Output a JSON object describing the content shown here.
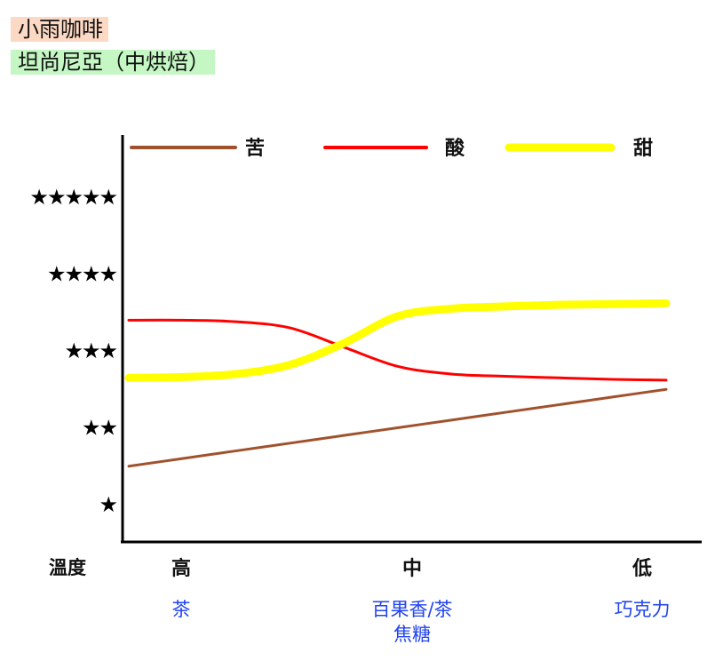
{
  "header": {
    "brand": "小雨咖啡",
    "brand_bg": "#fcd9c4",
    "origin": "坦尚尼亞（中烘焙）",
    "origin_bg": "#c4f7c4"
  },
  "chart_data": {
    "type": "line",
    "title": "",
    "ylabel": "",
    "xlabel": "溫度",
    "y_tick_labels": [
      "★",
      "★★",
      "★★★",
      "★★★★",
      "★★★★★"
    ],
    "ylim": [
      0.5,
      5.5
    ],
    "x_categories": [
      "高",
      "中",
      "低"
    ],
    "x_flavor_notes": [
      "茶",
      "百果香/茶\n焦糖",
      "巧克力"
    ],
    "x": [
      0,
      0.1,
      0.2,
      0.3,
      0.4,
      0.5,
      0.6,
      0.7,
      0.8,
      0.9,
      1.0
    ],
    "series": [
      {
        "name": "苦",
        "color": "#a0522d",
        "values": [
          1.5,
          1.6,
          1.7,
          1.8,
          1.9,
          2.0,
          2.1,
          2.2,
          2.3,
          2.4,
          2.5
        ]
      },
      {
        "name": "酸",
        "color": "#ff0000",
        "values": [
          3.4,
          3.4,
          3.38,
          3.3,
          3.05,
          2.8,
          2.7,
          2.67,
          2.65,
          2.63,
          2.62
        ]
      },
      {
        "name": "甜",
        "color": "#ffff00",
        "values": [
          2.65,
          2.66,
          2.7,
          2.82,
          3.1,
          3.45,
          3.55,
          3.58,
          3.6,
          3.61,
          3.62
        ]
      }
    ],
    "legend": "top",
    "grid": false
  }
}
